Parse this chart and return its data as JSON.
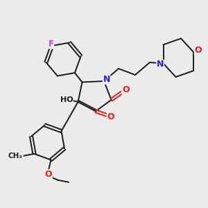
{
  "background_color": "#ebebeb",
  "bond_color": "#1a1a1a",
  "N_color": "#2020ee",
  "O_color": "#ee1a1a",
  "F_color": "#cc44cc",
  "H_color": "#1a1a1a",
  "figsize": [
    3.0,
    3.0
  ],
  "dpi": 100,
  "lw": 1.4,
  "xlim": [
    0,
    10
  ],
  "ylim": [
    0,
    10
  ]
}
